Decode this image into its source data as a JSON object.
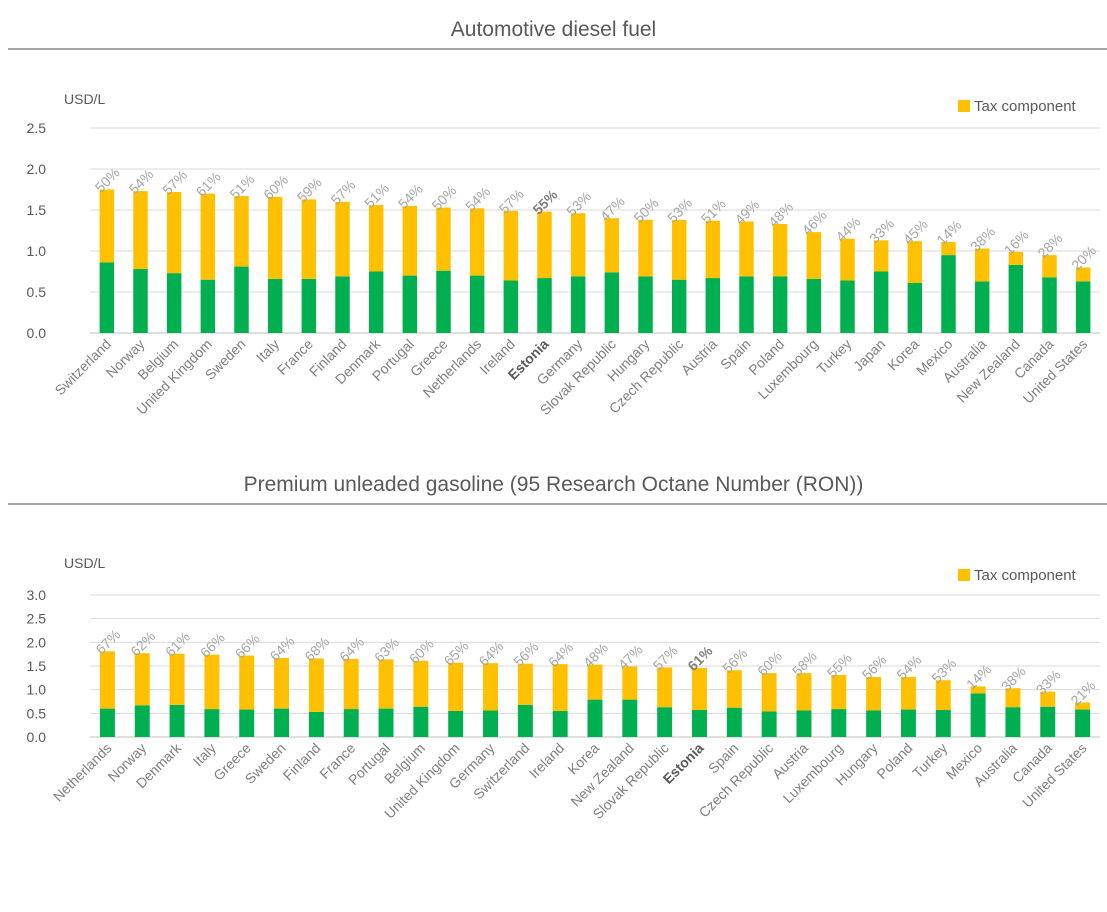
{
  "chart_data": [
    {
      "type": "bar",
      "stacked": true,
      "title": "Automotive diesel fuel",
      "ylabel": "USD/L",
      "ylim": [
        0,
        2.5
      ],
      "yticks": [
        "0.0",
        "0.5",
        "1.0",
        "1.5",
        "2.0",
        "2.5"
      ],
      "grid": true,
      "legend": "top-right",
      "highlight": "Estonia",
      "categories": [
        "Switzerland",
        "Norway",
        "Belgium",
        "United Kingdom",
        "Sweden",
        "Italy",
        "France",
        "Finland",
        "Denmark",
        "Portugal",
        "Greece",
        "Netherlands",
        "Ireland",
        "Estonia",
        "Germany",
        "Slovak Republic",
        "Hungary",
        "Czech Republic",
        "Austria",
        "Spain",
        "Poland",
        "Luxembourg",
        "Turkey",
        "Japan",
        "Korea",
        "Mexico",
        "Australia",
        "New Zealand",
        "Canada",
        "United States"
      ],
      "series": [
        {
          "name": "",
          "color": "#00b050",
          "values": [
            0.86,
            0.78,
            0.73,
            0.65,
            0.81,
            0.66,
            0.66,
            0.69,
            0.75,
            0.7,
            0.76,
            0.7,
            0.64,
            0.67,
            0.69,
            0.74,
            0.69,
            0.65,
            0.67,
            0.69,
            0.69,
            0.66,
            0.64,
            0.75,
            0.61,
            0.95,
            0.63,
            0.83,
            0.68,
            0.63
          ]
        },
        {
          "name": "Tax component",
          "color": "#ffc000",
          "values": [
            0.89,
            0.95,
            0.99,
            1.05,
            0.86,
            1.0,
            0.97,
            0.91,
            0.81,
            0.85,
            0.77,
            0.82,
            0.85,
            0.81,
            0.77,
            0.66,
            0.69,
            0.73,
            0.7,
            0.67,
            0.64,
            0.57,
            0.51,
            0.38,
            0.51,
            0.16,
            0.4,
            0.16,
            0.27,
            0.17
          ]
        }
      ],
      "labels": [
        "50%",
        "54%",
        "57%",
        "61%",
        "51%",
        "60%",
        "59%",
        "57%",
        "51%",
        "54%",
        "50%",
        "54%",
        "57%",
        "55%",
        "53%",
        "47%",
        "50%",
        "53%",
        "51%",
        "49%",
        "48%",
        "46%",
        "44%",
        "33%",
        "45%",
        "14%",
        "38%",
        "16%",
        "28%",
        "20%"
      ]
    },
    {
      "type": "bar",
      "stacked": true,
      "title": "Premium unleaded gasoline (95 Research Octane Number (RON))",
      "ylabel": "USD/L",
      "ylim": [
        0,
        3.0
      ],
      "yticks": [
        "0.0",
        "0.5",
        "1.0",
        "1.5",
        "2.0",
        "2.5",
        "3.0"
      ],
      "grid": true,
      "legend": "top-right",
      "highlight": "Estonia",
      "categories": [
        "Netherlands",
        "Norway",
        "Denmark",
        "Italy",
        "Greece",
        "Sweden",
        "Finland",
        "France",
        "Portugal",
        "Belgium",
        "United Kingdom",
        "Germany",
        "Switzerland",
        "Ireland",
        "Korea",
        "New Zealand",
        "Slovak Republic",
        "Estonia",
        "Spain",
        "Czech Republic",
        "Austria",
        "Luxembourg",
        "Hungary",
        "Poland",
        "Turkey",
        "Mexico",
        "Australia",
        "Canada",
        "United States"
      ],
      "series": [
        {
          "name": "",
          "color": "#00b050",
          "values": [
            0.6,
            0.67,
            0.68,
            0.59,
            0.58,
            0.6,
            0.53,
            0.59,
            0.6,
            0.64,
            0.55,
            0.56,
            0.68,
            0.55,
            0.79,
            0.79,
            0.63,
            0.57,
            0.62,
            0.54,
            0.56,
            0.59,
            0.56,
            0.58,
            0.57,
            0.92,
            0.63,
            0.64,
            0.58
          ]
        },
        {
          "name": "Tax component",
          "color": "#ffc000",
          "values": [
            1.21,
            1.1,
            1.08,
            1.15,
            1.14,
            1.07,
            1.13,
            1.06,
            1.04,
            0.97,
            1.02,
            1.0,
            0.87,
            0.99,
            0.74,
            0.7,
            0.84,
            0.89,
            0.79,
            0.81,
            0.79,
            0.72,
            0.71,
            0.69,
            0.63,
            0.15,
            0.4,
            0.32,
            0.15
          ]
        }
      ],
      "labels": [
        "67%",
        "62%",
        "61%",
        "66%",
        "66%",
        "64%",
        "68%",
        "64%",
        "63%",
        "60%",
        "65%",
        "64%",
        "56%",
        "64%",
        "48%",
        "47%",
        "57%",
        "61%",
        "56%",
        "60%",
        "58%",
        "55%",
        "56%",
        "54%",
        "53%",
        "14%",
        "38%",
        "33%",
        "21%"
      ]
    }
  ]
}
